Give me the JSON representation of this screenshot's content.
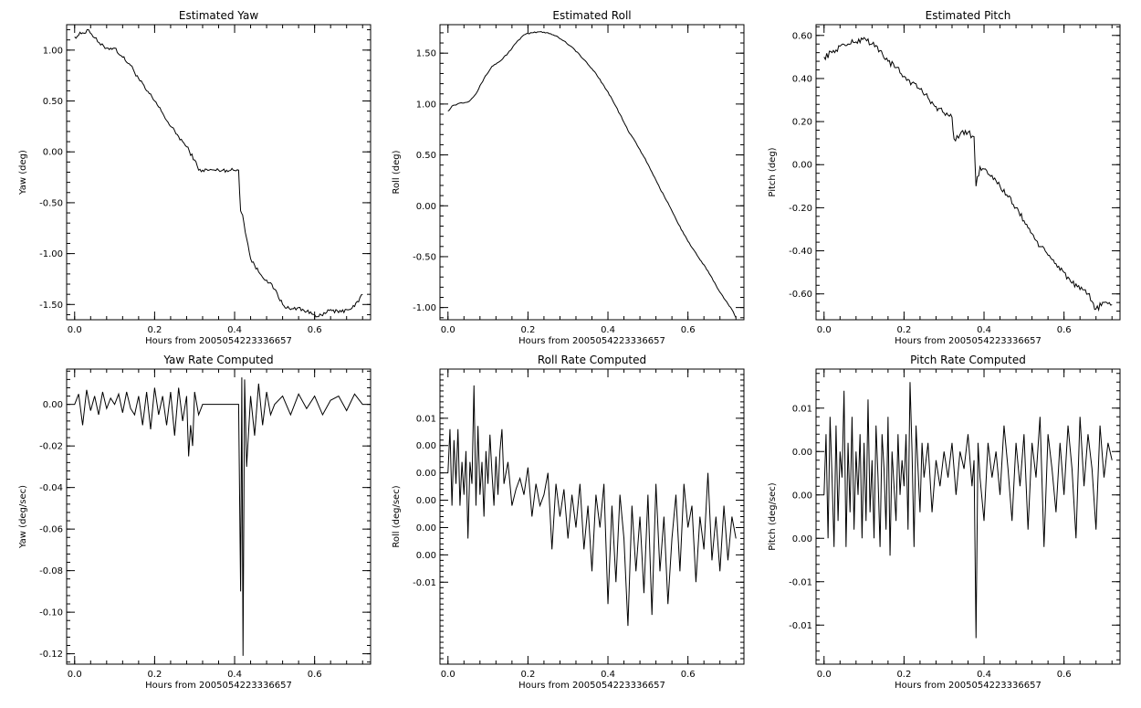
{
  "chart_data": [
    {
      "type": "line",
      "title": "Estimated Yaw",
      "xlabel": "Hours from 2005054223336657",
      "ylabel": "Yaw (deg)",
      "xlim": [
        -0.02,
        0.74
      ],
      "ylim": [
        -1.65,
        1.25
      ],
      "xticks": [
        0.0,
        0.2,
        0.4,
        0.6
      ],
      "xtick_labels": [
        "0.0",
        "0.2",
        "0.4",
        "0.6"
      ],
      "yticks": [
        1.0,
        0.5,
        0.0,
        -0.5,
        -1.0,
        -1.5
      ],
      "ytick_labels": [
        "1.00",
        "0.50",
        "0.00",
        "-0.50",
        "-1.00",
        "-1.50"
      ],
      "series": [
        {
          "x": [
            0.0,
            0.02,
            0.035,
            0.05,
            0.065,
            0.08,
            0.1,
            0.12,
            0.14,
            0.16,
            0.18,
            0.2,
            0.22,
            0.24,
            0.26,
            0.28,
            0.3,
            0.31,
            0.32,
            0.35,
            0.38,
            0.41,
            0.415,
            0.42,
            0.43,
            0.44,
            0.46,
            0.48,
            0.5,
            0.52,
            0.54,
            0.56,
            0.58,
            0.6,
            0.62,
            0.64,
            0.66,
            0.68,
            0.7,
            0.72
          ],
          "y": [
            1.13,
            1.17,
            1.2,
            1.12,
            1.05,
            1.02,
            1.02,
            0.93,
            0.85,
            0.72,
            0.6,
            0.5,
            0.38,
            0.25,
            0.15,
            0.05,
            -0.08,
            -0.18,
            -0.18,
            -0.18,
            -0.18,
            -0.18,
            -0.58,
            -0.62,
            -0.85,
            -1.05,
            -1.18,
            -1.26,
            -1.35,
            -1.5,
            -1.55,
            -1.53,
            -1.57,
            -1.6,
            -1.61,
            -1.55,
            -1.58,
            -1.55,
            -1.52,
            -1.4
          ],
          "noise": 0.02
        }
      ]
    },
    {
      "type": "line",
      "title": "Estimated Roll",
      "xlabel": "Hours from 2005054223336657",
      "ylabel": "Roll (deg)",
      "xlim": [
        -0.02,
        0.74
      ],
      "ylim": [
        -1.12,
        1.78
      ],
      "xticks": [
        0.0,
        0.2,
        0.4,
        0.6
      ],
      "xtick_labels": [
        "0.0",
        "0.2",
        "0.4",
        "0.6"
      ],
      "yticks": [
        1.5,
        1.0,
        0.5,
        0.0,
        -0.5,
        -1.0
      ],
      "ytick_labels": [
        "1.50",
        "1.00",
        "0.50",
        "0.00",
        "-0.50",
        "-1.00"
      ],
      "series": [
        {
          "x": [
            0.0,
            0.01,
            0.03,
            0.05,
            0.07,
            0.09,
            0.11,
            0.13,
            0.15,
            0.17,
            0.19,
            0.21,
            0.23,
            0.25,
            0.27,
            0.29,
            0.31,
            0.33,
            0.35,
            0.37,
            0.39,
            0.41,
            0.43,
            0.45,
            0.47,
            0.49,
            0.51,
            0.53,
            0.55,
            0.57,
            0.59,
            0.61,
            0.63,
            0.65,
            0.67,
            0.69,
            0.71,
            0.72
          ],
          "y": [
            0.93,
            0.98,
            1.01,
            1.02,
            1.1,
            1.25,
            1.37,
            1.42,
            1.5,
            1.6,
            1.68,
            1.7,
            1.71,
            1.7,
            1.67,
            1.62,
            1.56,
            1.48,
            1.39,
            1.3,
            1.18,
            1.05,
            0.9,
            0.74,
            0.62,
            0.48,
            0.33,
            0.17,
            0.03,
            -0.13,
            -0.28,
            -0.41,
            -0.53,
            -0.64,
            -0.78,
            -0.91,
            -1.02,
            -1.1
          ],
          "noise": 0.006
        }
      ]
    },
    {
      "type": "line",
      "title": "Estimated Pitch",
      "xlabel": "Hours from 2005054223336657",
      "ylabel": "Pitch (deg)",
      "xlim": [
        -0.02,
        0.74
      ],
      "ylim": [
        -0.72,
        0.65
      ],
      "xticks": [
        0.0,
        0.2,
        0.4,
        0.6
      ],
      "xtick_labels": [
        "0.0",
        "0.2",
        "0.4",
        "0.6"
      ],
      "yticks": [
        0.6,
        0.4,
        0.2,
        0.0,
        -0.2,
        -0.4,
        -0.6
      ],
      "ytick_labels": [
        "0.60",
        "0.40",
        "0.20",
        "0.00",
        "-0.20",
        "-0.40",
        "-0.60"
      ],
      "series": [
        {
          "x": [
            0.0,
            0.02,
            0.04,
            0.06,
            0.08,
            0.1,
            0.12,
            0.14,
            0.16,
            0.18,
            0.2,
            0.22,
            0.24,
            0.26,
            0.28,
            0.3,
            0.32,
            0.325,
            0.34,
            0.36,
            0.375,
            0.38,
            0.39,
            0.4,
            0.42,
            0.44,
            0.46,
            0.48,
            0.5,
            0.52,
            0.54,
            0.56,
            0.58,
            0.6,
            0.62,
            0.64,
            0.66,
            0.68,
            0.7,
            0.72
          ],
          "y": [
            0.5,
            0.52,
            0.55,
            0.56,
            0.57,
            0.59,
            0.56,
            0.53,
            0.48,
            0.45,
            0.41,
            0.38,
            0.35,
            0.31,
            0.27,
            0.24,
            0.22,
            0.12,
            0.14,
            0.15,
            0.13,
            -0.1,
            -0.01,
            -0.02,
            -0.05,
            -0.1,
            -0.15,
            -0.2,
            -0.26,
            -0.32,
            -0.38,
            -0.42,
            -0.46,
            -0.5,
            -0.55,
            -0.58,
            -0.6,
            -0.67,
            -0.64,
            -0.65
          ],
          "noise": 0.015
        }
      ]
    },
    {
      "type": "line",
      "title": "Yaw Rate Computed",
      "xlabel": "Hours from 2005054223336657",
      "ylabel": "Yaw (deg/sec)",
      "xlim": [
        -0.02,
        0.74
      ],
      "ylim": [
        -0.125,
        0.017
      ],
      "xticks": [
        0.0,
        0.2,
        0.4,
        0.6
      ],
      "xtick_labels": [
        "0.0",
        "0.2",
        "0.4",
        "0.6"
      ],
      "yticks": [
        0.0,
        -0.02,
        -0.04,
        -0.06,
        -0.08,
        -0.1,
        -0.12
      ],
      "ytick_labels": [
        "0.00",
        "-0.02",
        "-0.04",
        "-0.06",
        "-0.08",
        "-0.10",
        "-0.12"
      ],
      "series": [
        {
          "x": [
            0.0,
            0.01,
            0.02,
            0.03,
            0.04,
            0.05,
            0.06,
            0.07,
            0.08,
            0.09,
            0.1,
            0.11,
            0.12,
            0.13,
            0.14,
            0.15,
            0.16,
            0.17,
            0.18,
            0.19,
            0.2,
            0.21,
            0.22,
            0.23,
            0.24,
            0.25,
            0.26,
            0.27,
            0.28,
            0.285,
            0.29,
            0.295,
            0.3,
            0.31,
            0.32,
            0.41,
            0.415,
            0.418,
            0.421,
            0.425,
            0.43,
            0.44,
            0.45,
            0.46,
            0.47,
            0.48,
            0.49,
            0.5,
            0.52,
            0.54,
            0.56,
            0.58,
            0.6,
            0.62,
            0.64,
            0.66,
            0.68,
            0.7,
            0.72
          ],
          "y": [
            0.0,
            0.005,
            -0.01,
            0.007,
            -0.003,
            0.004,
            -0.005,
            0.006,
            -0.002,
            0.003,
            0.0,
            0.005,
            -0.004,
            0.006,
            -0.002,
            -0.005,
            0.004,
            -0.01,
            0.006,
            -0.012,
            0.008,
            -0.005,
            0.004,
            -0.01,
            0.006,
            -0.015,
            0.008,
            -0.008,
            0.004,
            -0.025,
            -0.01,
            -0.02,
            0.006,
            -0.005,
            0.0,
            0.0,
            -0.09,
            0.013,
            -0.121,
            0.012,
            -0.03,
            0.004,
            -0.015,
            0.01,
            -0.01,
            0.006,
            -0.005,
            0.0,
            0.004,
            -0.005,
            0.005,
            -0.002,
            0.004,
            -0.005,
            0.002,
            0.004,
            -0.003,
            0.005,
            0.0
          ],
          "noise": 0.0
        }
      ]
    },
    {
      "type": "line",
      "title": "Roll Rate Computed",
      "xlabel": "Hours from 2005054223336657",
      "ylabel": "Roll (deg/sec)",
      "xlim": [
        -0.02,
        0.74
      ],
      "ylim": [
        -0.0125,
        0.0145
      ],
      "xticks": [
        0.0,
        0.2,
        0.4,
        0.6
      ],
      "xtick_labels": [
        "0.0",
        "0.2",
        "0.4",
        "0.6"
      ],
      "yticks": [
        0.01,
        0.0075,
        0.005,
        0.0025,
        0.0,
        -0.0025,
        -0.005
      ],
      "ytick_labels": [
        "0.01",
        "0.00",
        "0.00",
        "0.00",
        "0.00",
        "0.00",
        "-0.01"
      ],
      "series": [
        {
          "x": [
            0.0,
            0.005,
            0.01,
            0.015,
            0.02,
            0.025,
            0.03,
            0.035,
            0.04,
            0.045,
            0.05,
            0.055,
            0.06,
            0.065,
            0.07,
            0.075,
            0.08,
            0.085,
            0.09,
            0.095,
            0.1,
            0.105,
            0.11,
            0.115,
            0.12,
            0.125,
            0.13,
            0.135,
            0.14,
            0.145,
            0.15,
            0.16,
            0.17,
            0.18,
            0.19,
            0.2,
            0.21,
            0.22,
            0.23,
            0.24,
            0.25,
            0.26,
            0.27,
            0.28,
            0.29,
            0.3,
            0.31,
            0.32,
            0.33,
            0.34,
            0.35,
            0.36,
            0.37,
            0.38,
            0.39,
            0.4,
            0.41,
            0.42,
            0.43,
            0.44,
            0.45,
            0.46,
            0.47,
            0.48,
            0.49,
            0.5,
            0.51,
            0.52,
            0.53,
            0.54,
            0.55,
            0.56,
            0.57,
            0.58,
            0.59,
            0.6,
            0.61,
            0.62,
            0.63,
            0.64,
            0.65,
            0.66,
            0.67,
            0.68,
            0.69,
            0.7,
            0.71,
            0.72
          ],
          "y": [
            0.005,
            0.009,
            0.002,
            0.008,
            0.004,
            0.009,
            0.002,
            0.006,
            0.003,
            0.007,
            -0.001,
            0.006,
            0.004,
            0.013,
            0.002,
            0.0093,
            0.003,
            0.006,
            0.001,
            0.007,
            0.004,
            0.0085,
            0.005,
            0.002,
            0.0065,
            0.003,
            0.007,
            0.009,
            0.004,
            0.005,
            0.006,
            0.002,
            0.0035,
            0.0045,
            0.003,
            0.0055,
            0.001,
            0.004,
            0.002,
            0.003,
            0.005,
            -0.002,
            0.004,
            0.001,
            0.0035,
            -0.001,
            0.003,
            0.0,
            0.004,
            -0.002,
            0.002,
            -0.004,
            0.003,
            0.0,
            0.004,
            -0.007,
            0.002,
            -0.005,
            0.003,
            -0.001,
            -0.009,
            0.002,
            -0.004,
            0.001,
            -0.006,
            0.003,
            -0.008,
            0.004,
            -0.004,
            0.001,
            -0.007,
            -0.001,
            0.003,
            -0.004,
            0.004,
            0.0,
            0.002,
            -0.005,
            0.001,
            -0.002,
            0.005,
            -0.003,
            0.001,
            -0.004,
            0.002,
            -0.003,
            0.001,
            -0.001
          ],
          "noise": 0.0
        }
      ]
    },
    {
      "type": "line",
      "title": "Pitch Rate Computed",
      "xlabel": "Hours from 2005054223336657",
      "ylabel": "Pitch (deg/sec)",
      "xlim": [
        -0.02,
        0.74
      ],
      "ylim": [
        -0.0195,
        0.0145
      ],
      "xticks": [
        0.0,
        0.2,
        0.4,
        0.6
      ],
      "xtick_labels": [
        "0.0",
        "0.2",
        "0.4",
        "0.6"
      ],
      "yticks": [
        0.01,
        0.005,
        0.0,
        -0.005,
        -0.01,
        -0.015
      ],
      "ytick_labels": [
        "0.01",
        "0.00",
        "0.00",
        "0.00",
        "-0.01",
        "-0.01"
      ],
      "series": [
        {
          "x": [
            0.0,
            0.005,
            0.01,
            0.015,
            0.02,
            0.025,
            0.03,
            0.035,
            0.04,
            0.045,
            0.05,
            0.055,
            0.06,
            0.065,
            0.07,
            0.075,
            0.08,
            0.085,
            0.09,
            0.095,
            0.1,
            0.105,
            0.11,
            0.115,
            0.12,
            0.125,
            0.13,
            0.135,
            0.14,
            0.145,
            0.15,
            0.155,
            0.16,
            0.165,
            0.17,
            0.175,
            0.18,
            0.185,
            0.19,
            0.195,
            0.2,
            0.205,
            0.21,
            0.215,
            0.22,
            0.225,
            0.23,
            0.235,
            0.24,
            0.245,
            0.25,
            0.26,
            0.27,
            0.28,
            0.29,
            0.3,
            0.31,
            0.32,
            0.33,
            0.34,
            0.35,
            0.36,
            0.37,
            0.375,
            0.38,
            0.385,
            0.39,
            0.4,
            0.41,
            0.42,
            0.43,
            0.44,
            0.45,
            0.46,
            0.47,
            0.48,
            0.49,
            0.5,
            0.51,
            0.52,
            0.53,
            0.54,
            0.55,
            0.56,
            0.57,
            0.58,
            0.59,
            0.6,
            0.61,
            0.62,
            0.63,
            0.64,
            0.65,
            0.66,
            0.67,
            0.68,
            0.69,
            0.7,
            0.71,
            0.72
          ],
          "y": [
            0.0,
            0.007,
            -0.005,
            0.009,
            0.002,
            -0.006,
            0.008,
            -0.003,
            0.005,
            0.002,
            0.012,
            -0.006,
            0.006,
            -0.002,
            0.009,
            -0.004,
            0.005,
            0.0,
            0.007,
            -0.005,
            0.006,
            -0.003,
            0.011,
            -0.002,
            0.004,
            -0.005,
            0.008,
            0.002,
            -0.006,
            0.007,
            0.003,
            -0.004,
            0.009,
            -0.007,
            0.005,
            0.001,
            -0.003,
            0.007,
            0.0,
            0.004,
            0.001,
            0.007,
            -0.004,
            0.013,
            0.005,
            -0.006,
            0.008,
            0.003,
            -0.002,
            0.006,
            0.002,
            0.006,
            -0.002,
            0.004,
            0.001,
            0.005,
            0.002,
            0.006,
            0.0,
            0.005,
            0.003,
            0.007,
            0.001,
            0.004,
            -0.0165,
            0.006,
            0.002,
            -0.003,
            0.006,
            0.002,
            0.005,
            0.0,
            0.008,
            0.003,
            -0.003,
            0.006,
            0.001,
            0.007,
            -0.004,
            0.006,
            0.002,
            0.009,
            -0.006,
            0.007,
            0.003,
            -0.002,
            0.006,
            0.0,
            0.008,
            0.003,
            -0.005,
            0.009,
            0.001,
            0.007,
            0.003,
            -0.004,
            0.008,
            0.002,
            0.006,
            0.004
          ],
          "noise": 0.0
        }
      ]
    }
  ]
}
